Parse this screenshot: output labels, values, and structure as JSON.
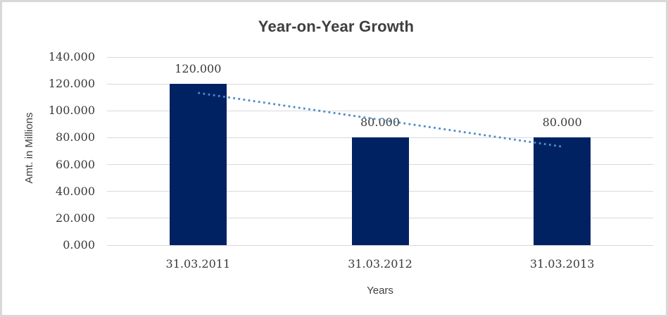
{
  "chart_data": {
    "type": "bar",
    "title": "Year-on-Year Growth",
    "xlabel": "Years",
    "ylabel": "Amt. in Millions",
    "categories": [
      "31.03.2011",
      "31.03.2012",
      "31.03.2013"
    ],
    "values": [
      120,
      80,
      80
    ],
    "data_labels": [
      "120.000",
      "80.000",
      "80.000"
    ],
    "ytick_values": [
      0,
      20,
      40,
      60,
      80,
      100,
      120,
      140
    ],
    "ytick_labels": [
      "0.000",
      "20.000",
      "40.000",
      "60.000",
      "80.000",
      "100.000",
      "120.000",
      "140.000"
    ],
    "ylim": [
      0,
      140
    ],
    "grid": true,
    "legend": "none",
    "bar_color": "#002263",
    "gridline_color": "#d9d9d9",
    "trendline": {
      "type": "linear",
      "style": "dotted",
      "color": "#4d8bc9",
      "values": [
        113.333,
        93.333,
        73.333
      ]
    }
  }
}
